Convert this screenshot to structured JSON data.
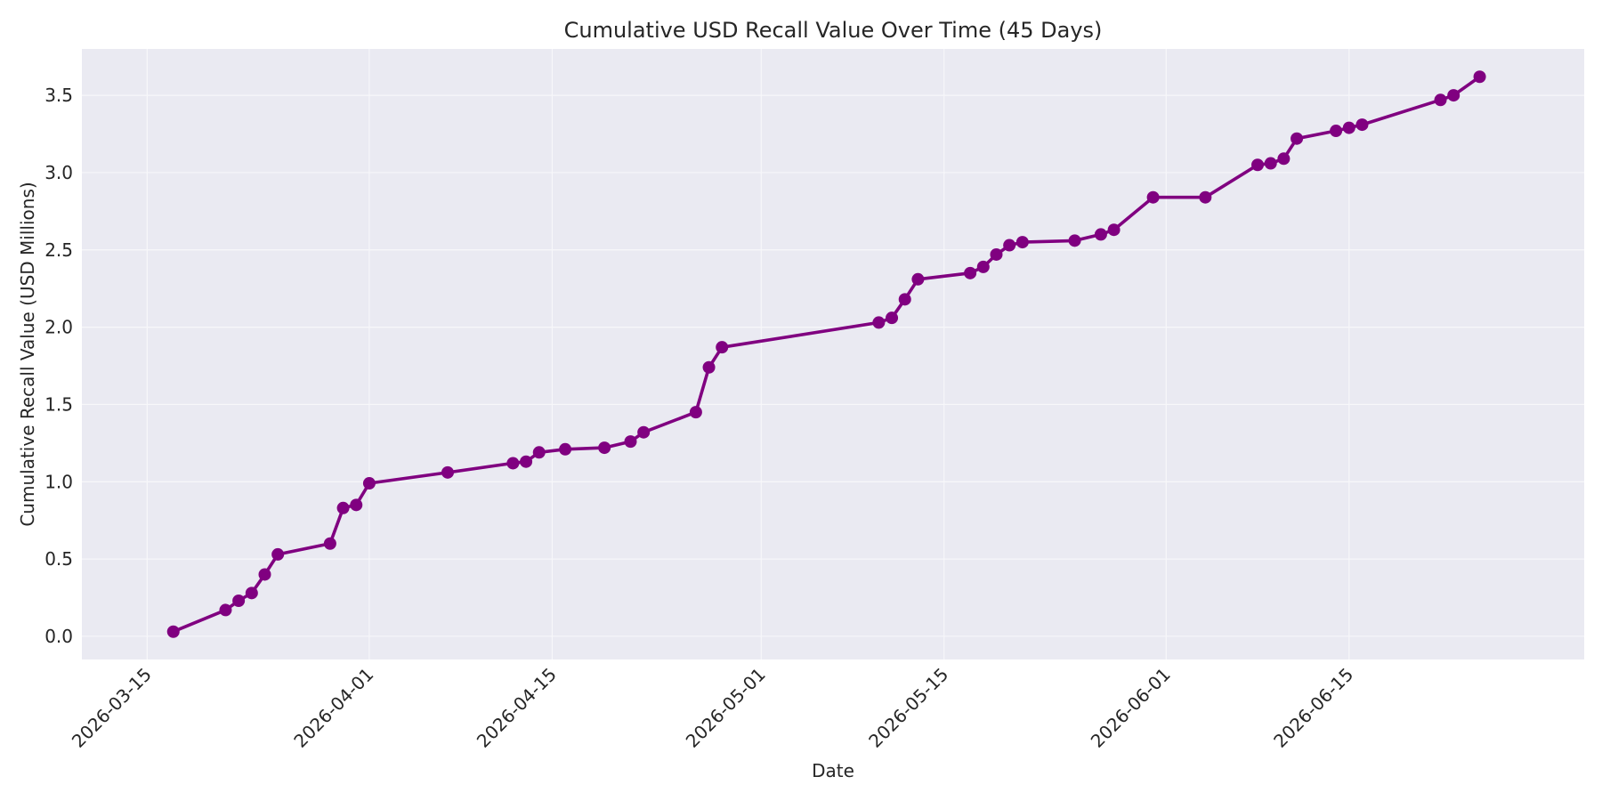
{
  "chart_data": {
    "type": "line",
    "title": "Cumulative USD Recall Value Over Time (45 Days)",
    "xlabel": "Date",
    "ylabel": "Cumulative Recall Value (USD Millions)",
    "x_scale": "date",
    "xlim": [
      "2026-03-10",
      "2026-07-03"
    ],
    "ylim": [
      -0.15,
      3.8
    ],
    "x_ticks": [
      "2026-03-15",
      "2026-04-01",
      "2026-04-15",
      "2026-05-01",
      "2026-05-15",
      "2026-06-01",
      "2026-06-15"
    ],
    "y_ticks": [
      0.0,
      0.5,
      1.0,
      1.5,
      2.0,
      2.5,
      3.0,
      3.5
    ],
    "y_tick_labels": [
      "0.0",
      "0.5",
      "1.0",
      "1.5",
      "2.0",
      "2.5",
      "3.0",
      "3.5"
    ],
    "grid": true,
    "legend": "none",
    "colors": {
      "line": "#800080",
      "plot_background": "#EAEAF2",
      "grid": "#F7F7FA"
    },
    "series": [
      {
        "x": [
          "2026-03-17",
          "2026-03-21",
          "2026-03-22",
          "2026-03-23",
          "2026-03-24",
          "2026-03-25",
          "2026-03-29",
          "2026-03-30",
          "2026-03-31",
          "2026-04-01",
          "2026-04-07",
          "2026-04-12",
          "2026-04-13",
          "2026-04-14",
          "2026-04-16",
          "2026-04-19",
          "2026-04-21",
          "2026-04-22",
          "2026-04-26",
          "2026-04-27",
          "2026-04-28",
          "2026-05-10",
          "2026-05-11",
          "2026-05-12",
          "2026-05-13",
          "2026-05-17",
          "2026-05-18",
          "2026-05-19",
          "2026-05-20",
          "2026-05-21",
          "2026-05-25",
          "2026-05-27",
          "2026-05-28",
          "2026-05-31",
          "2026-06-04",
          "2026-06-08",
          "2026-06-09",
          "2026-06-10",
          "2026-06-11",
          "2026-06-14",
          "2026-06-15",
          "2026-06-16",
          "2026-06-22",
          "2026-06-23",
          "2026-06-25"
        ],
        "values": [
          0.03,
          0.17,
          0.23,
          0.28,
          0.4,
          0.53,
          0.6,
          0.83,
          0.85,
          0.99,
          1.06,
          1.12,
          1.13,
          1.19,
          1.21,
          1.22,
          1.26,
          1.32,
          1.45,
          1.74,
          1.87,
          2.03,
          2.06,
          2.18,
          2.31,
          2.35,
          2.39,
          2.47,
          2.53,
          2.55,
          2.56,
          2.6,
          2.63,
          2.84,
          2.84,
          3.05,
          3.06,
          3.09,
          3.22,
          3.27,
          3.29,
          3.31,
          3.47,
          3.5,
          3.62
        ]
      }
    ]
  }
}
